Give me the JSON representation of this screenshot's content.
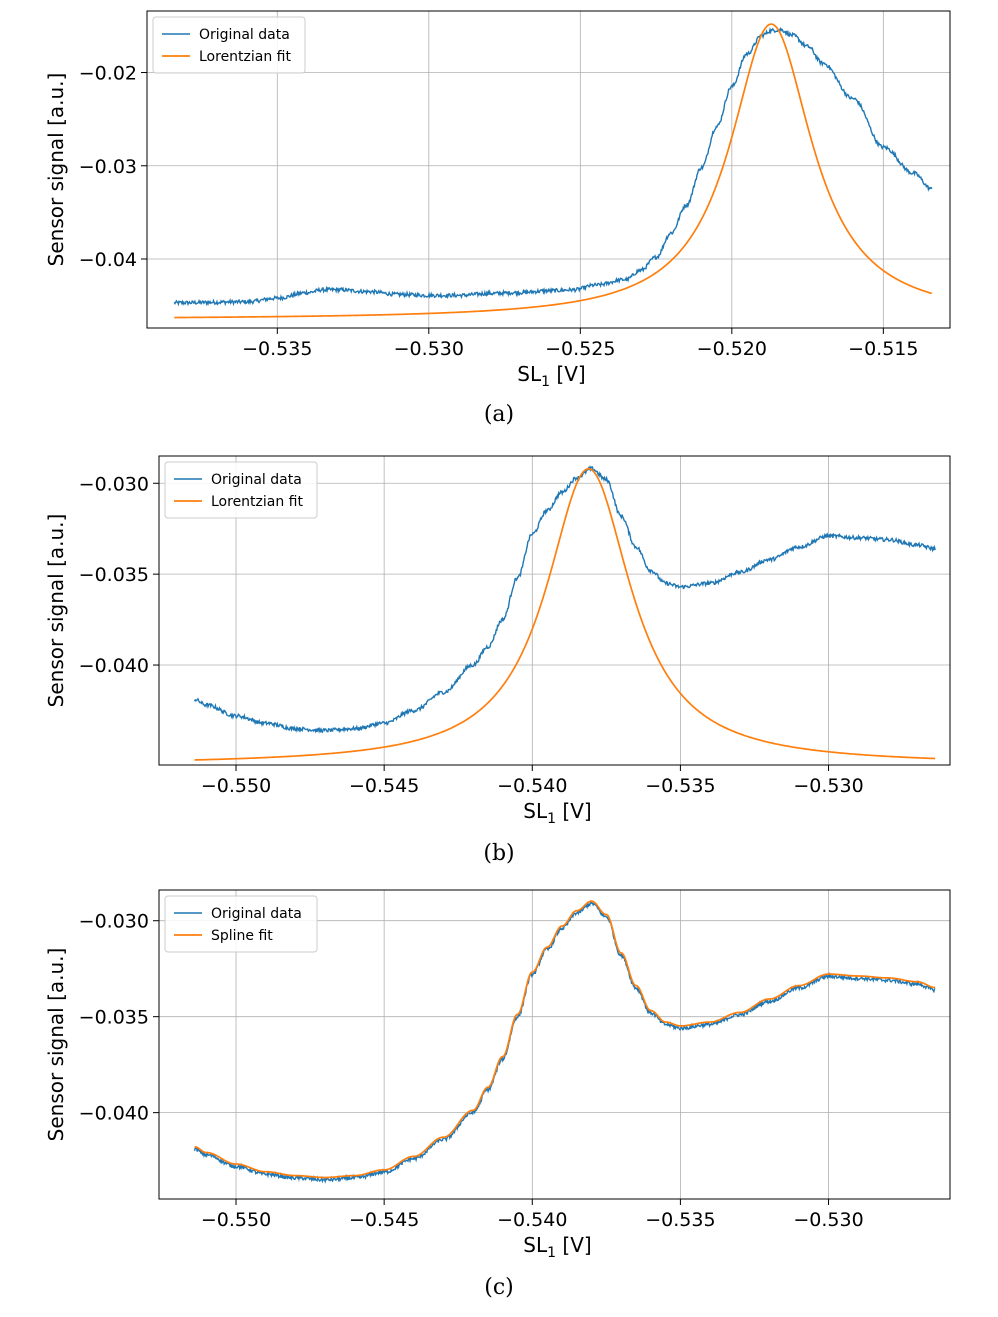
{
  "figure": {
    "colors": {
      "original": "#1f77b4",
      "fit": "#ff7f0e"
    }
  },
  "chart_data": [
    {
      "type": "line",
      "caption": "(a)",
      "xlabel": "SL",
      "xlabel_sub": "1",
      "xlabel_unit": " [V]",
      "ylabel": "Sensor signal [a.u.]",
      "xlim": [
        -0.5393,
        -0.5128
      ],
      "ylim": [
        -0.0474,
        -0.0134
      ],
      "xticks": [
        -0.535,
        -0.53,
        -0.525,
        -0.52,
        -0.515
      ],
      "xtick_labels": [
        "−0.535",
        "−0.530",
        "−0.525",
        "−0.520",
        "−0.515"
      ],
      "yticks": [
        -0.04,
        -0.03,
        -0.02
      ],
      "ytick_labels": [
        "−0.04",
        "−0.03",
        "−0.02"
      ],
      "legend_position": "upper-left",
      "grid": true,
      "series": [
        {
          "name": "Original data",
          "color": "#1f77b4",
          "noisy": true,
          "x": [
            -0.5384,
            -0.536,
            -0.535,
            -0.534,
            -0.5335,
            -0.533,
            -0.532,
            -0.531,
            -0.53,
            -0.529,
            -0.528,
            -0.527,
            -0.526,
            -0.5252,
            -0.5245,
            -0.5235,
            -0.523,
            -0.5225,
            -0.522,
            -0.5215,
            -0.521,
            -0.5205,
            -0.52,
            -0.5195,
            -0.519,
            -0.5187,
            -0.5184,
            -0.518,
            -0.5175,
            -0.517,
            -0.516,
            -0.515,
            -0.514,
            -0.5134
          ],
          "y": [
            -0.0447,
            -0.0446,
            -0.0442,
            -0.0436,
            -0.0433,
            -0.0433,
            -0.0435,
            -0.0438,
            -0.0439,
            -0.0439,
            -0.0437,
            -0.0436,
            -0.0434,
            -0.0433,
            -0.0428,
            -0.0422,
            -0.0412,
            -0.0398,
            -0.0372,
            -0.0342,
            -0.0302,
            -0.0258,
            -0.0215,
            -0.018,
            -0.016,
            -0.0155,
            -0.0154,
            -0.016,
            -0.0172,
            -0.019,
            -0.0228,
            -0.028,
            -0.0308,
            -0.0325
          ]
        },
        {
          "name": "Lorentzian fit",
          "color": "#ff7f0e",
          "model": "lorentzian",
          "params": {
            "y0": -0.0465,
            "A": 0.0317,
            "x0": -0.5187,
            "gamma": 0.00165
          },
          "x_range": [
            -0.5384,
            -0.5134
          ]
        }
      ]
    },
    {
      "type": "line",
      "caption": "(b)",
      "xlabel": "SL",
      "xlabel_sub": "1",
      "xlabel_unit": " [V]",
      "ylabel": "Sensor signal [a.u.]",
      "xlim": [
        -0.5526,
        -0.5259
      ],
      "ylim": [
        -0.0455,
        -0.0285
      ],
      "xticks": [
        -0.55,
        -0.545,
        -0.54,
        -0.535,
        -0.53
      ],
      "xtick_labels": [
        "−0.550",
        "−0.545",
        "−0.540",
        "−0.535",
        "−0.530"
      ],
      "yticks": [
        -0.04,
        -0.035,
        -0.03
      ],
      "ytick_labels": [
        "−0.040",
        "−0.035",
        "−0.030"
      ],
      "legend_position": "upper-left",
      "grid": true,
      "series": [
        {
          "name": "Original data",
          "color": "#1f77b4",
          "noisy": true,
          "x": [
            -0.5514,
            -0.551,
            -0.55,
            -0.549,
            -0.548,
            -0.547,
            -0.546,
            -0.545,
            -0.544,
            -0.543,
            -0.542,
            -0.5415,
            -0.541,
            -0.5405,
            -0.54,
            -0.5395,
            -0.539,
            -0.5385,
            -0.538,
            -0.5375,
            -0.537,
            -0.5365,
            -0.536,
            -0.5355,
            -0.535,
            -0.534,
            -0.533,
            -0.532,
            -0.531,
            -0.53,
            -0.529,
            -0.528,
            -0.527,
            -0.5264
          ],
          "y": [
            -0.0419,
            -0.0422,
            -0.0428,
            -0.0432,
            -0.0435,
            -0.0436,
            -0.0435,
            -0.0432,
            -0.0425,
            -0.0415,
            -0.04,
            -0.039,
            -0.0375,
            -0.0352,
            -0.0328,
            -0.0315,
            -0.0305,
            -0.0297,
            -0.0292,
            -0.0298,
            -0.0318,
            -0.0335,
            -0.0348,
            -0.0355,
            -0.0357,
            -0.0355,
            -0.0349,
            -0.0342,
            -0.0335,
            -0.0329,
            -0.033,
            -0.0331,
            -0.0334,
            -0.0336
          ]
        },
        {
          "name": "Lorentzian fit",
          "color": "#ff7f0e",
          "model": "lorentzian",
          "params": {
            "y0": -0.0455,
            "A": 0.0163,
            "x0": -0.5381,
            "gamma": 0.00175
          },
          "x_range": [
            -0.5514,
            -0.5264
          ]
        }
      ]
    },
    {
      "type": "line",
      "caption": "(c)",
      "xlabel": "SL",
      "xlabel_sub": "1",
      "xlabel_unit": " [V]",
      "ylabel": "Sensor signal [a.u.]",
      "xlim": [
        -0.5526,
        -0.5259
      ],
      "ylim": [
        -0.0445,
        -0.0284
      ],
      "xticks": [
        -0.55,
        -0.545,
        -0.54,
        -0.535,
        -0.53
      ],
      "xtick_labels": [
        "−0.550",
        "−0.545",
        "−0.540",
        "−0.535",
        "−0.530"
      ],
      "yticks": [
        -0.04,
        -0.035,
        -0.03
      ],
      "ytick_labels": [
        "−0.040",
        "−0.035",
        "−0.030"
      ],
      "legend_position": "upper-left",
      "grid": true,
      "series": [
        {
          "name": "Original data",
          "color": "#1f77b4",
          "noisy": true,
          "x": [
            -0.5514,
            -0.551,
            -0.55,
            -0.549,
            -0.548,
            -0.547,
            -0.546,
            -0.545,
            -0.544,
            -0.543,
            -0.542,
            -0.5415,
            -0.541,
            -0.5405,
            -0.54,
            -0.5395,
            -0.539,
            -0.5385,
            -0.538,
            -0.5375,
            -0.537,
            -0.5365,
            -0.536,
            -0.5355,
            -0.535,
            -0.534,
            -0.533,
            -0.532,
            -0.531,
            -0.53,
            -0.529,
            -0.528,
            -0.527,
            -0.5264
          ],
          "y": [
            -0.0419,
            -0.0422,
            -0.0428,
            -0.0432,
            -0.0434,
            -0.0435,
            -0.0434,
            -0.0431,
            -0.0424,
            -0.0414,
            -0.04,
            -0.0388,
            -0.0372,
            -0.035,
            -0.0328,
            -0.0315,
            -0.0304,
            -0.0296,
            -0.0291,
            -0.0298,
            -0.0318,
            -0.0335,
            -0.0348,
            -0.0354,
            -0.0356,
            -0.0354,
            -0.0349,
            -0.0342,
            -0.0335,
            -0.0329,
            -0.033,
            -0.0331,
            -0.0333,
            -0.0336
          ]
        },
        {
          "name": "Spline fit",
          "color": "#ff7f0e",
          "model": "follow_previous",
          "offset": 0.00012
        }
      ]
    }
  ]
}
